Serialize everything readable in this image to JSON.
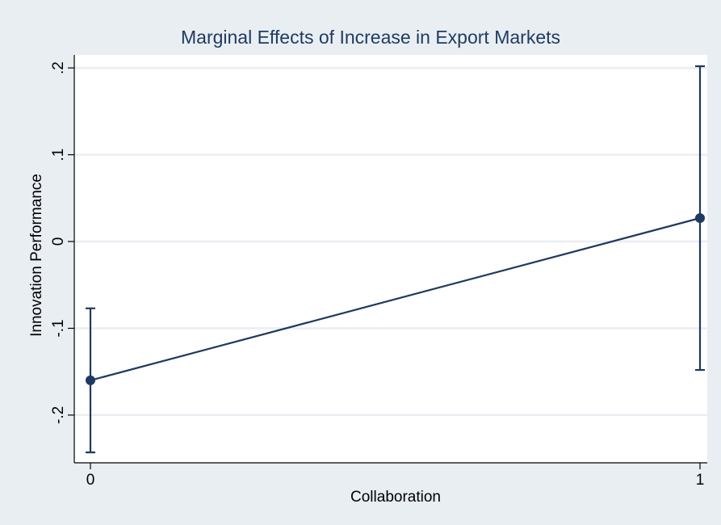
{
  "chart_data": {
    "type": "line",
    "title": "Marginal Effects of Increase in Export Markets",
    "xlabel": "Collaboration",
    "ylabel": "Innovation Performance",
    "x": [
      0,
      1
    ],
    "x_tick_labels": [
      "0",
      "1"
    ],
    "y_ticks": [
      -0.2,
      -0.1,
      0,
      0.1,
      0.2
    ],
    "y_tick_labels": [
      "-.2",
      "-.1",
      "0",
      ".1",
      ".2"
    ],
    "ylim": [
      -0.255,
      0.215
    ],
    "grid": true,
    "series": [
      {
        "values": [
          -0.16,
          0.027
        ],
        "ci_lower": [
          -0.243,
          -0.148
        ],
        "ci_upper": [
          -0.077,
          0.202
        ]
      }
    ],
    "colors": {
      "line": "#1e3a5f",
      "grid": "#e9eef3",
      "background": "#e9eef3",
      "plot_background": "#ffffff"
    }
  }
}
